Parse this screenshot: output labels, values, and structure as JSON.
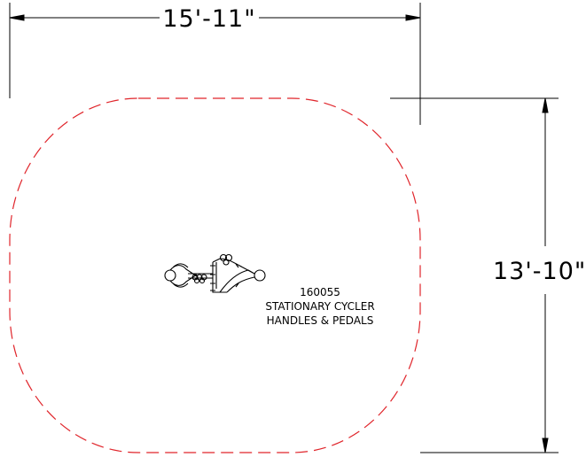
{
  "dimensions": {
    "width_label": "15'-11\"",
    "height_label": "13'-10\""
  },
  "equipment": {
    "number": "160055",
    "name_line1": "STATIONARY CYCLER",
    "name_line2": "HANDLES & PEDALS"
  },
  "colors": {
    "use_zone": "#e0252b",
    "line": "#000000"
  }
}
